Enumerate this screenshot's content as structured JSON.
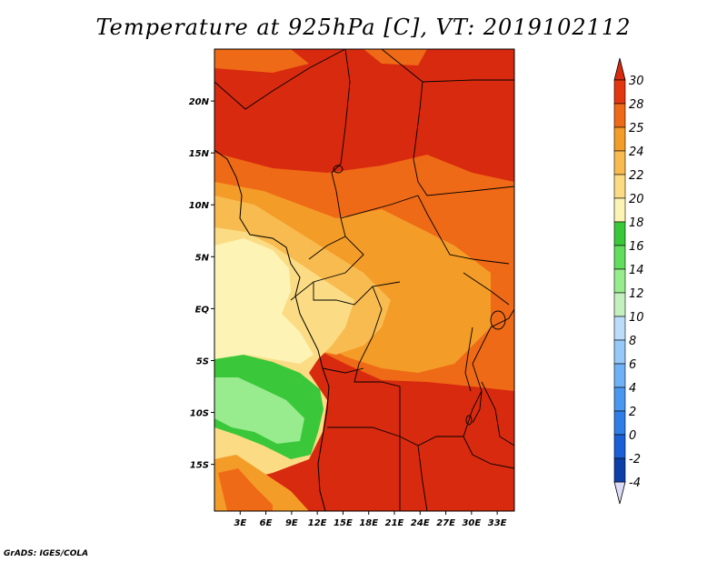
{
  "title": "Temperature at 925hPa [C], VT: 2019102112",
  "credit": "GrADS: IGES/COLA",
  "map": {
    "lon_range": [
      0,
      35
    ],
    "lat_range": [
      -19.5,
      25
    ],
    "lat_ticks": [
      {
        "value": 20,
        "label": "20N"
      },
      {
        "value": 15,
        "label": "15N"
      },
      {
        "value": 10,
        "label": "10N"
      },
      {
        "value": 5,
        "label": "5N"
      },
      {
        "value": 0,
        "label": "EQ"
      },
      {
        "value": -5,
        "label": "5S"
      },
      {
        "value": -10,
        "label": "10S"
      },
      {
        "value": -15,
        "label": "15S"
      }
    ],
    "lon_ticks": [
      {
        "value": 3,
        "label": "3E"
      },
      {
        "value": 6,
        "label": "6E"
      },
      {
        "value": 9,
        "label": "9E"
      },
      {
        "value": 12,
        "label": "12E"
      },
      {
        "value": 15,
        "label": "15E"
      },
      {
        "value": 18,
        "label": "18E"
      },
      {
        "value": 21,
        "label": "21E"
      },
      {
        "value": 24,
        "label": "24E"
      },
      {
        "value": 27,
        "label": "27E"
      },
      {
        "value": 30,
        "label": "30E"
      },
      {
        "value": 33,
        "label": "33E"
      }
    ],
    "ocean_color": "#fbe6a0"
  },
  "colorbar": {
    "levels": [
      {
        "value": "-4",
        "color": "#0a0a78"
      },
      {
        "value": "-2",
        "color": "#0d3fa6"
      },
      {
        "value": "0",
        "color": "#1a5fd6"
      },
      {
        "value": "2",
        "color": "#2f7de6"
      },
      {
        "value": "4",
        "color": "#4a97f0"
      },
      {
        "value": "6",
        "color": "#6eb1f5"
      },
      {
        "value": "8",
        "color": "#96c9f8"
      },
      {
        "value": "10",
        "color": "#bcdcfb"
      },
      {
        "value": "12",
        "color": "#c4f0c0"
      },
      {
        "value": "14",
        "color": "#98ec8e"
      },
      {
        "value": "16",
        "color": "#63dd5e"
      },
      {
        "value": "18",
        "color": "#3ac83a"
      },
      {
        "value": "20",
        "color": "#fdf3b4"
      },
      {
        "value": "22",
        "color": "#fbdc84"
      },
      {
        "value": "24",
        "color": "#f8bb50"
      },
      {
        "value": "25",
        "color": "#f49c28"
      },
      {
        "value": "28",
        "color": "#ef6a16"
      },
      {
        "value": "30",
        "color": "#e2370f"
      }
    ],
    "bottom_cap_color": "#dcdcf8",
    "top_cap_color": "#d82a0e"
  }
}
